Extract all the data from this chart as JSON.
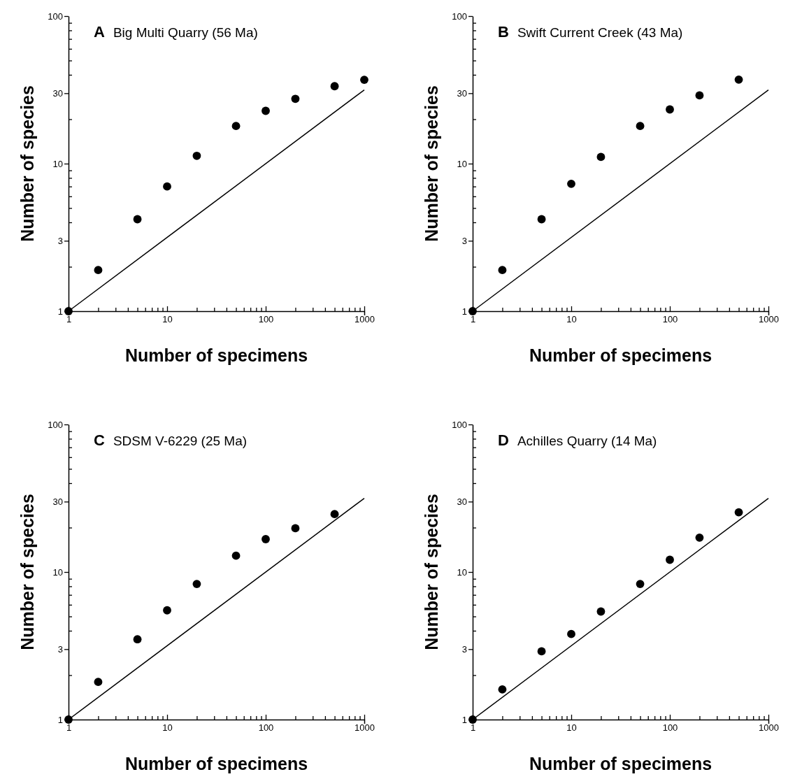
{
  "chart_data": [
    {
      "type": "scatter",
      "title": "A Big Multi Quarry (56 Ma)",
      "xlabel": "Number of specimens",
      "ylabel": "Number of species",
      "log": "xy",
      "marker": "circle",
      "xlim": [
        1,
        1000
      ],
      "ylim": [
        1,
        100
      ],
      "xticks": [
        1,
        {
          "value": 2,
          "label": null
        },
        {
          "value": 3,
          "label": null
        },
        {
          "value": 4,
          "label": null
        },
        {
          "value": 5,
          "label": null
        },
        {
          "value": 6,
          "label": null
        },
        {
          "value": 7,
          "label": null
        },
        {
          "value": 8,
          "label": null
        },
        {
          "value": 9,
          "label": null
        },
        10,
        {
          "value": 20,
          "label": null
        },
        {
          "value": 30,
          "label": null
        },
        {
          "value": 40,
          "label": null
        },
        {
          "value": 50,
          "label": null
        },
        {
          "value": 60,
          "label": null
        },
        {
          "value": 70,
          "label": null
        },
        {
          "value": 80,
          "label": null
        },
        {
          "value": 90,
          "label": null
        },
        100,
        {
          "value": 200,
          "label": null
        },
        {
          "value": 300,
          "label": null
        },
        {
          "value": 400,
          "label": null
        },
        {
          "value": 500,
          "label": null
        },
        {
          "value": 600,
          "label": null
        },
        {
          "value": 700,
          "label": null
        },
        {
          "value": 800,
          "label": null
        },
        {
          "value": 900,
          "label": null
        },
        1000
      ],
      "yticks": [
        1,
        {
          "value": 2,
          "label": null
        },
        3,
        {
          "value": 4,
          "label": null
        },
        {
          "value": 5,
          "label": null
        },
        {
          "value": 6,
          "label": null
        },
        {
          "value": 7,
          "label": null
        },
        {
          "value": 8,
          "label": null
        },
        {
          "value": 9,
          "label": null
        },
        10,
        {
          "value": 20,
          "label": null
        },
        30,
        {
          "value": 40,
          "label": null
        },
        {
          "value": 50,
          "label": null
        },
        {
          "value": 60,
          "label": null
        },
        {
          "value": 70,
          "label": null
        },
        {
          "value": 80,
          "label": null
        },
        {
          "value": 90,
          "label": null
        },
        100
      ],
      "series": [
        {
          "color": "#000000",
          "x": [
            1,
            2,
            5,
            10,
            20,
            50,
            100,
            200,
            500,
            1000
          ],
          "values": [
            1,
            1.9,
            4.2,
            7.0,
            11.3,
            18.0,
            22.8,
            27.5,
            33.5,
            37.0
          ]
        },
        {
          "type": "line",
          "color": "#000000",
          "line_style": "solid",
          "marker": "none",
          "x": [
            1,
            1000
          ],
          "values": [
            1,
            31.6
          ]
        }
      ]
    },
    {
      "type": "scatter",
      "title": "B Swift Current Creek (43 Ma)",
      "xlabel": "Number of specimens",
      "ylabel": "Number of species",
      "log": "xy",
      "marker": "circle",
      "xlim": [
        1,
        1000
      ],
      "ylim": [
        1,
        100
      ],
      "xticks": [
        1,
        {
          "value": 2,
          "label": null
        },
        {
          "value": 3,
          "label": null
        },
        {
          "value": 4,
          "label": null
        },
        {
          "value": 5,
          "label": null
        },
        {
          "value": 6,
          "label": null
        },
        {
          "value": 7,
          "label": null
        },
        {
          "value": 8,
          "label": null
        },
        {
          "value": 9,
          "label": null
        },
        10,
        {
          "value": 20,
          "label": null
        },
        {
          "value": 30,
          "label": null
        },
        {
          "value": 40,
          "label": null
        },
        {
          "value": 50,
          "label": null
        },
        {
          "value": 60,
          "label": null
        },
        {
          "value": 70,
          "label": null
        },
        {
          "value": 80,
          "label": null
        },
        {
          "value": 90,
          "label": null
        },
        100,
        {
          "value": 200,
          "label": null
        },
        {
          "value": 300,
          "label": null
        },
        {
          "value": 400,
          "label": null
        },
        {
          "value": 500,
          "label": null
        },
        {
          "value": 600,
          "label": null
        },
        {
          "value": 700,
          "label": null
        },
        {
          "value": 800,
          "label": null
        },
        {
          "value": 900,
          "label": null
        },
        1000
      ],
      "yticks": [
        1,
        {
          "value": 2,
          "label": null
        },
        3,
        {
          "value": 4,
          "label": null
        },
        {
          "value": 5,
          "label": null
        },
        {
          "value": 6,
          "label": null
        },
        {
          "value": 7,
          "label": null
        },
        {
          "value": 8,
          "label": null
        },
        {
          "value": 9,
          "label": null
        },
        10,
        {
          "value": 20,
          "label": null
        },
        30,
        {
          "value": 40,
          "label": null
        },
        {
          "value": 50,
          "label": null
        },
        {
          "value": 60,
          "label": null
        },
        {
          "value": 70,
          "label": null
        },
        {
          "value": 80,
          "label": null
        },
        {
          "value": 90,
          "label": null
        },
        100
      ],
      "series": [
        {
          "color": "#000000",
          "x": [
            1,
            2,
            5,
            10,
            20,
            50,
            100,
            200,
            500
          ],
          "values": [
            1,
            1.9,
            4.2,
            7.3,
            11.1,
            18.0,
            23.3,
            29.0,
            37.1
          ]
        },
        {
          "type": "line",
          "color": "#000000",
          "line_style": "solid",
          "marker": "none",
          "x": [
            1,
            1000
          ],
          "values": [
            1,
            31.6
          ]
        }
      ]
    },
    {
      "type": "scatter",
      "title": "C SDSM V-6229 (25 Ma)",
      "xlabel": "Number of specimens",
      "ylabel": "Number of species",
      "log": "xy",
      "marker": "circle",
      "xlim": [
        1,
        1000
      ],
      "ylim": [
        1,
        100
      ],
      "xticks": [
        1,
        {
          "value": 2,
          "label": null
        },
        {
          "value": 3,
          "label": null
        },
        {
          "value": 4,
          "label": null
        },
        {
          "value": 5,
          "label": null
        },
        {
          "value": 6,
          "label": null
        },
        {
          "value": 7,
          "label": null
        },
        {
          "value": 8,
          "label": null
        },
        {
          "value": 9,
          "label": null
        },
        10,
        {
          "value": 20,
          "label": null
        },
        {
          "value": 30,
          "label": null
        },
        {
          "value": 40,
          "label": null
        },
        {
          "value": 50,
          "label": null
        },
        {
          "value": 60,
          "label": null
        },
        {
          "value": 70,
          "label": null
        },
        {
          "value": 80,
          "label": null
        },
        {
          "value": 90,
          "label": null
        },
        100,
        {
          "value": 200,
          "label": null
        },
        {
          "value": 300,
          "label": null
        },
        {
          "value": 400,
          "label": null
        },
        {
          "value": 500,
          "label": null
        },
        {
          "value": 600,
          "label": null
        },
        {
          "value": 700,
          "label": null
        },
        {
          "value": 800,
          "label": null
        },
        {
          "value": 900,
          "label": null
        },
        1000
      ],
      "yticks": [
        1,
        {
          "value": 2,
          "label": null
        },
        3,
        {
          "value": 4,
          "label": null
        },
        {
          "value": 5,
          "label": null
        },
        {
          "value": 6,
          "label": null
        },
        {
          "value": 7,
          "label": null
        },
        {
          "value": 8,
          "label": null
        },
        {
          "value": 9,
          "label": null
        },
        10,
        {
          "value": 20,
          "label": null
        },
        30,
        {
          "value": 40,
          "label": null
        },
        {
          "value": 50,
          "label": null
        },
        {
          "value": 60,
          "label": null
        },
        {
          "value": 70,
          "label": null
        },
        {
          "value": 80,
          "label": null
        },
        {
          "value": 90,
          "label": null
        },
        100
      ],
      "series": [
        {
          "color": "#000000",
          "x": [
            1,
            2,
            5,
            10,
            20,
            50,
            100,
            200,
            500
          ],
          "values": [
            1,
            1.8,
            3.5,
            5.5,
            8.3,
            12.9,
            16.7,
            19.8,
            24.7
          ]
        },
        {
          "type": "line",
          "color": "#000000",
          "line_style": "solid",
          "marker": "none",
          "x": [
            1,
            1000
          ],
          "values": [
            1,
            31.6
          ]
        }
      ]
    },
    {
      "type": "scatter",
      "title": "D Achilles Quarry (14 Ma)",
      "xlabel": "Number of specimens",
      "ylabel": "Number of species",
      "log": "xy",
      "marker": "circle",
      "xlim": [
        1,
        1000
      ],
      "ylim": [
        1,
        100
      ],
      "xticks": [
        1,
        {
          "value": 2,
          "label": null
        },
        {
          "value": 3,
          "label": null
        },
        {
          "value": 4,
          "label": null
        },
        {
          "value": 5,
          "label": null
        },
        {
          "value": 6,
          "label": null
        },
        {
          "value": 7,
          "label": null
        },
        {
          "value": 8,
          "label": null
        },
        {
          "value": 9,
          "label": null
        },
        10,
        {
          "value": 20,
          "label": null
        },
        {
          "value": 30,
          "label": null
        },
        {
          "value": 40,
          "label": null
        },
        {
          "value": 50,
          "label": null
        },
        {
          "value": 60,
          "label": null
        },
        {
          "value": 70,
          "label": null
        },
        {
          "value": 80,
          "label": null
        },
        {
          "value": 90,
          "label": null
        },
        100,
        {
          "value": 200,
          "label": null
        },
        {
          "value": 300,
          "label": null
        },
        {
          "value": 400,
          "label": null
        },
        {
          "value": 500,
          "label": null
        },
        {
          "value": 600,
          "label": null
        },
        {
          "value": 700,
          "label": null
        },
        {
          "value": 800,
          "label": null
        },
        {
          "value": 900,
          "label": null
        },
        1000
      ],
      "yticks": [
        1,
        {
          "value": 2,
          "label": null
        },
        3,
        {
          "value": 4,
          "label": null
        },
        {
          "value": 5,
          "label": null
        },
        {
          "value": 6,
          "label": null
        },
        {
          "value": 7,
          "label": null
        },
        {
          "value": 8,
          "label": null
        },
        {
          "value": 9,
          "label": null
        },
        10,
        {
          "value": 20,
          "label": null
        },
        30,
        {
          "value": 40,
          "label": null
        },
        {
          "value": 50,
          "label": null
        },
        {
          "value": 60,
          "label": null
        },
        {
          "value": 70,
          "label": null
        },
        {
          "value": 80,
          "label": null
        },
        {
          "value": 90,
          "label": null
        },
        100
      ],
      "series": [
        {
          "color": "#000000",
          "x": [
            1,
            2,
            5,
            10,
            20,
            50,
            100,
            200,
            500
          ],
          "values": [
            1,
            1.6,
            2.9,
            3.8,
            5.4,
            8.3,
            12.1,
            17.1,
            25.4
          ]
        },
        {
          "type": "line",
          "color": "#000000",
          "line_style": "solid",
          "marker": "none",
          "x": [
            1,
            1000
          ],
          "values": [
            1,
            31.6
          ]
        }
      ]
    }
  ]
}
